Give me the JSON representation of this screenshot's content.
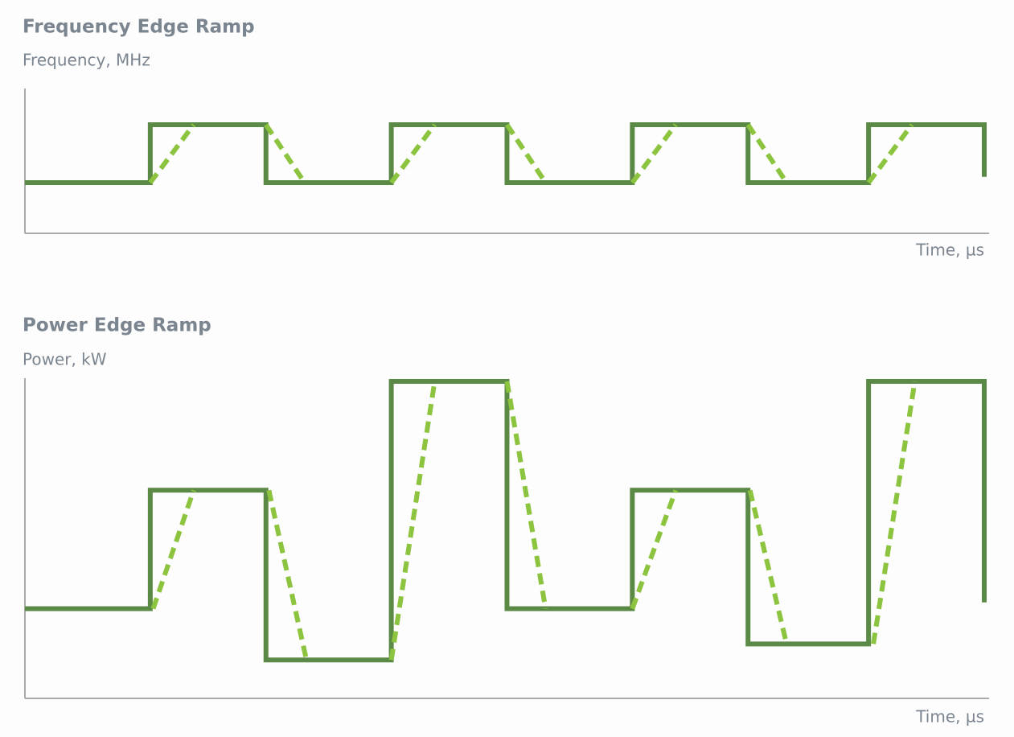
{
  "chart_data": [
    {
      "type": "line",
      "title": "Frequency Edge Ramp",
      "y_label": "Frequency, MHz",
      "x_label": "Time, µs",
      "xlim": [
        0,
        100
      ],
      "ylim": [
        0,
        100
      ],
      "series": [
        {
          "color": "#5a8a45",
          "style": "solid",
          "x": [
            0,
            13,
            13,
            25,
            25,
            38,
            38,
            50,
            50,
            63,
            63,
            75,
            75,
            87.5,
            87.5,
            99.5,
            99.5
          ],
          "values": [
            35,
            35,
            75,
            75,
            35,
            35,
            75,
            75,
            35,
            35,
            75,
            75,
            35,
            35,
            75,
            75,
            39
          ]
        },
        {
          "color": "#8cc43f",
          "style": "dashed",
          "x": [
            13,
            17.5,
            21,
            25,
            29,
            33,
            38,
            42.5,
            46,
            50,
            54,
            58,
            63,
            67.5,
            71,
            75,
            79,
            83,
            87.5,
            92
          ],
          "values": [
            35,
            75,
            null,
            75,
            35,
            null,
            35,
            75,
            null,
            75,
            35,
            null,
            35,
            75,
            null,
            75,
            35,
            null,
            35,
            75
          ]
        }
      ]
    },
    {
      "type": "line",
      "title": "Power Edge Ramp",
      "y_label": "Power, kW",
      "x_label": "Time, µs",
      "xlim": [
        0,
        100
      ],
      "ylim": [
        0,
        100
      ],
      "series": [
        {
          "color": "#5a8a45",
          "style": "solid",
          "x": [
            0,
            13,
            13,
            25,
            25,
            38,
            38,
            50,
            50,
            63,
            63,
            75,
            75,
            87.5,
            87.5,
            99.5,
            99.5
          ],
          "values": [
            28,
            28,
            65,
            65,
            12,
            12,
            99,
            99,
            28,
            28,
            65,
            65,
            17,
            17,
            99,
            99,
            30
          ]
        },
        {
          "color": "#8cc43f",
          "style": "dashed",
          "x": [
            13.3,
            17.5,
            21,
            25.3,
            29.2,
            33,
            38,
            42.5,
            46,
            50,
            54,
            58,
            63,
            67.5,
            71,
            75.2,
            79,
            83,
            88,
            92.3
          ],
          "values": [
            28,
            65,
            null,
            65,
            12,
            null,
            12,
            99,
            null,
            99,
            28,
            null,
            28,
            65,
            null,
            65,
            17,
            null,
            17,
            99
          ]
        }
      ]
    }
  ]
}
